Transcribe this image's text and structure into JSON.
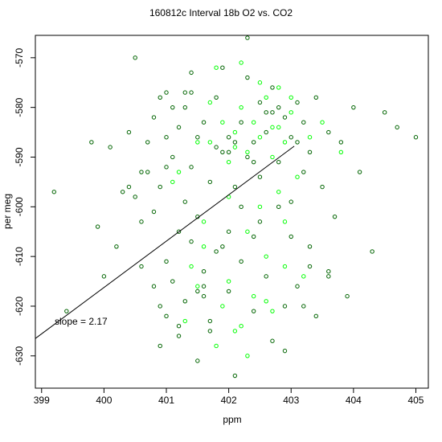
{
  "chart_data": {
    "type": "scatter",
    "title": "160812c   Interval 18b O2 vs. CO2",
    "xlabel": "ppm",
    "ylabel": "per meg",
    "xlim": [
      398.9,
      405.2
    ],
    "ylim": [
      -636.5,
      -565.5
    ],
    "xticks": [
      "399",
      "400",
      "401",
      "402",
      "403",
      "404",
      "405"
    ],
    "yticks": [
      "-570",
      "-580",
      "-590",
      "-600",
      "-610",
      "-620",
      "-630"
    ],
    "grid": false,
    "legend": "none",
    "annotation": "slope =  2.17",
    "fit_line": {
      "slope": 2.17,
      "points": [
        [
          398.9,
          -626.5
        ],
        [
          403.05,
          -587.8
        ]
      ]
    },
    "series": [
      {
        "marker": "open-circle",
        "color": "#006400",
        "x": [
          399.2,
          399.4,
          399.8,
          399.9,
          400.0,
          400.1,
          400.2,
          400.3,
          400.4,
          400.4,
          400.5,
          400.5,
          400.6,
          400.6,
          400.7,
          400.7,
          400.8,
          400.8,
          400.8,
          400.9,
          400.9,
          400.9,
          401.0,
          401.0,
          401.0,
          401.0,
          401.1,
          401.1,
          401.1,
          401.2,
          401.2,
          401.2,
          401.3,
          401.3,
          401.3,
          401.4,
          401.4,
          401.4,
          401.5,
          401.5,
          401.5,
          401.6,
          401.6,
          401.7,
          401.7,
          401.8,
          401.8,
          401.9,
          401.9,
          402.0,
          402.0,
          402.1,
          402.1,
          402.2,
          402.2,
          402.3,
          402.3,
          402.4,
          402.4,
          402.5,
          402.5,
          402.6,
          402.6,
          402.7,
          402.7,
          402.8,
          402.8,
          402.9,
          402.9,
          403.0,
          403.0,
          403.1,
          403.1,
          403.2,
          403.2,
          403.3,
          403.3,
          403.4,
          403.4,
          403.5,
          403.6,
          403.6,
          403.7,
          403.8,
          403.9,
          404.0,
          404.1,
          404.3,
          404.5,
          404.7,
          405.0,
          401.3,
          401.7,
          402.0,
          402.4,
          402.9,
          401.0,
          401.6,
          402.2,
          402.6,
          403.1,
          400.9,
          401.4,
          402.7,
          403.3,
          401.9,
          402.3,
          402.0,
          401.6,
          402.5,
          401.2,
          403.0,
          401.8,
          402.1,
          402.8,
          401.5,
          402.4,
          403.2,
          400.6,
          403.6
        ],
        "y": [
          -597,
          -621,
          -587,
          -604,
          -614,
          -588,
          -608,
          -597,
          -585,
          -596,
          -570,
          -598,
          -612,
          -603,
          -587,
          -593,
          -616,
          -582,
          -601,
          -578,
          -620,
          -596,
          -586,
          -611,
          -577,
          -622,
          -590,
          -615,
          -580,
          -605,
          -584,
          -624,
          -599,
          -580,
          -619,
          -592,
          -607,
          -577,
          -631,
          -586,
          -602,
          -613,
          -583,
          -595,
          -625,
          -588,
          -578,
          -608,
          -572,
          -617,
          -586,
          -596,
          -634,
          -583,
          -611,
          -590,
          -574,
          -621,
          -587,
          -603,
          -579,
          -614,
          -585,
          -576,
          -627,
          -591,
          -600,
          -582,
          -620,
          -586,
          -606,
          -579,
          -616,
          -593,
          -583,
          -608,
          -589,
          -578,
          -622,
          -596,
          -585,
          -613,
          -602,
          -587,
          -618,
          -580,
          -593,
          -609,
          -581,
          -584,
          -586,
          -577,
          -623,
          -589,
          -606,
          -629,
          -592,
          -618,
          -600,
          -581,
          -587,
          -628,
          -573,
          -581,
          -612,
          -589,
          -566,
          -605,
          -616,
          -594,
          -626,
          -599,
          -609,
          -587,
          -580,
          -617,
          -591,
          -620,
          -593,
          -614
        ],
        "note": "dark green open circles (main sample of visible points)"
      },
      {
        "marker": "open-circle",
        "color": "#00ff00",
        "x": [
          401.2,
          401.5,
          401.7,
          401.9,
          402.0,
          402.1,
          402.2,
          402.3,
          402.4,
          402.5,
          402.6,
          402.7,
          402.8,
          402.9,
          403.0,
          403.1,
          403.3,
          403.5,
          403.8,
          401.8,
          402.2,
          402.5,
          402.8,
          403.0,
          401.4,
          401.6,
          402.0,
          402.3,
          402.6,
          402.9,
          401.9,
          402.1,
          402.4,
          402.7,
          401.3,
          401.8,
          402.2,
          402.6,
          403.2,
          401.6,
          402.0,
          402.5,
          402.8,
          401.1,
          401.5,
          402.3,
          402.9,
          401.7,
          402.1,
          402.7
        ],
        "y": [
          -593,
          -587,
          -579,
          -583,
          -591,
          -585,
          -580,
          -589,
          -583,
          -586,
          -578,
          -590,
          -584,
          -587,
          -581,
          -594,
          -586,
          -583,
          -589,
          -572,
          -571,
          -575,
          -576,
          -578,
          -612,
          -608,
          -615,
          -605,
          -610,
          -603,
          -620,
          -625,
          -618,
          -621,
          -623,
          -628,
          -624,
          -619,
          -614,
          -603,
          -598,
          -600,
          -597,
          -595,
          -616,
          -630,
          -612,
          -587,
          -588,
          -584
        ],
        "note": "bright green open circles"
      }
    ]
  }
}
